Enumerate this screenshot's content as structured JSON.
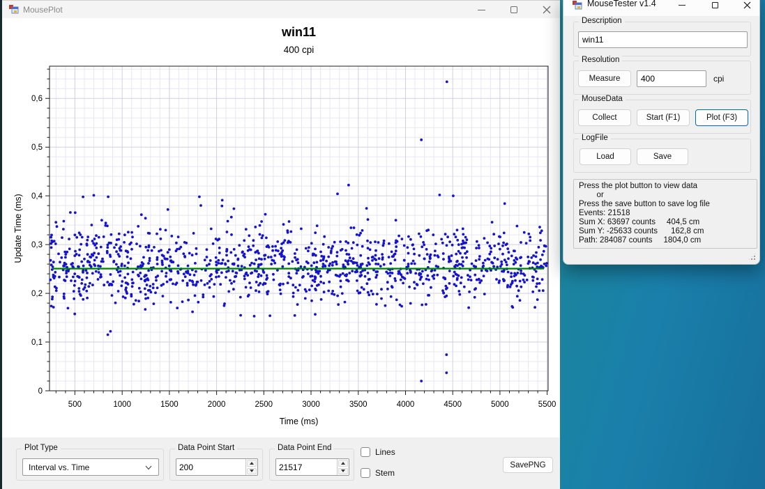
{
  "main_window": {
    "title": "MousePlot",
    "controls": {
      "plot_type": {
        "label": "Plot Type",
        "value": "Interval vs. Time"
      },
      "data_point_start": {
        "label": "Data Point Start",
        "value": "200"
      },
      "data_point_end": {
        "label": "Data Point End",
        "value": "21517"
      },
      "lines_checkbox": {
        "label": "Lines",
        "checked": false
      },
      "stem_checkbox": {
        "label": "Stem",
        "checked": false
      },
      "save_png_button": "SavePNG"
    }
  },
  "chart_data": {
    "type": "scatter",
    "title": "win11",
    "subtitle": "400 cpi",
    "xlabel": "Time (ms)",
    "ylabel": "Update Time (ms)",
    "xlim": [
      231,
      5510
    ],
    "ylim": [
      0,
      0.666
    ],
    "x_ticks": [
      500,
      1000,
      1500,
      2000,
      2500,
      3000,
      3500,
      4000,
      4500,
      5000,
      5500
    ],
    "x_tick_labels": [
      "500",
      "1000",
      "1500",
      "2000",
      "2500",
      "3000",
      "3500",
      "4000",
      "4500",
      "5000",
      "5500"
    ],
    "y_ticks": [
      0,
      0.1,
      0.2,
      0.3,
      0.4,
      0.5,
      0.6
    ],
    "y_tick_labels": [
      "0",
      "0,1",
      "0,2",
      "0,3",
      "0,4",
      "0,5",
      "0,6"
    ],
    "x_minor_step": 100,
    "x_major_step": 500,
    "y_minor_step": 0.02,
    "grid_minor_color": "#e7e7f3",
    "grid_major_color": "#cfcfe3",
    "frame_color": "#1c1c1c",
    "mean_line": {
      "value": 0.2507,
      "color": "#008000"
    },
    "points": {
      "color": "#1414cd",
      "radius": 1.9,
      "count": 1250,
      "seed": 7,
      "band_mean": 0.257,
      "band_sd": 0.038,
      "wide_sd": 0.062,
      "wide_fraction": 0.1,
      "y_min": 0.152,
      "y_max": 0.425
    },
    "outliers": [
      [
        4438,
        0.634
      ],
      [
        4168,
        0.515
      ],
      [
        3398,
        0.422
      ],
      [
        3280,
        0.404
      ],
      [
        700,
        0.401
      ],
      [
        852,
        0.398
      ],
      [
        4505,
        0.4
      ],
      [
        2060,
        0.391
      ],
      [
        5050,
        0.384
      ],
      [
        848,
        0.115
      ],
      [
        876,
        0.122
      ],
      [
        4168,
        0.02
      ],
      [
        4434,
        0.074
      ],
      [
        4434,
        0.037
      ]
    ]
  },
  "tester_window": {
    "title": "MouseTester v1.4",
    "groups": {
      "description": {
        "label": "Description",
        "value": "win11"
      },
      "resolution": {
        "label": "Resolution",
        "measure_button": "Measure",
        "cpi_value": "400",
        "cpi_unit": "cpi"
      },
      "mouse_data": {
        "label": "MouseData",
        "collect_button": "Collect",
        "start_button": "Start (F1)",
        "plot_button": "Plot (F3)"
      },
      "log_file": {
        "label": "LogFile",
        "load_button": "Load",
        "save_button": "Save"
      }
    },
    "status": {
      "lines": [
        "Press the plot button to view data",
        "        or",
        "Press the save button to save log file",
        "Events: 21518",
        "Sum X: 63697 counts     404,5 cm",
        "Sum Y: -25633 counts      162,8 cm",
        "Path: 284087 counts     1804,0 cm"
      ]
    }
  }
}
